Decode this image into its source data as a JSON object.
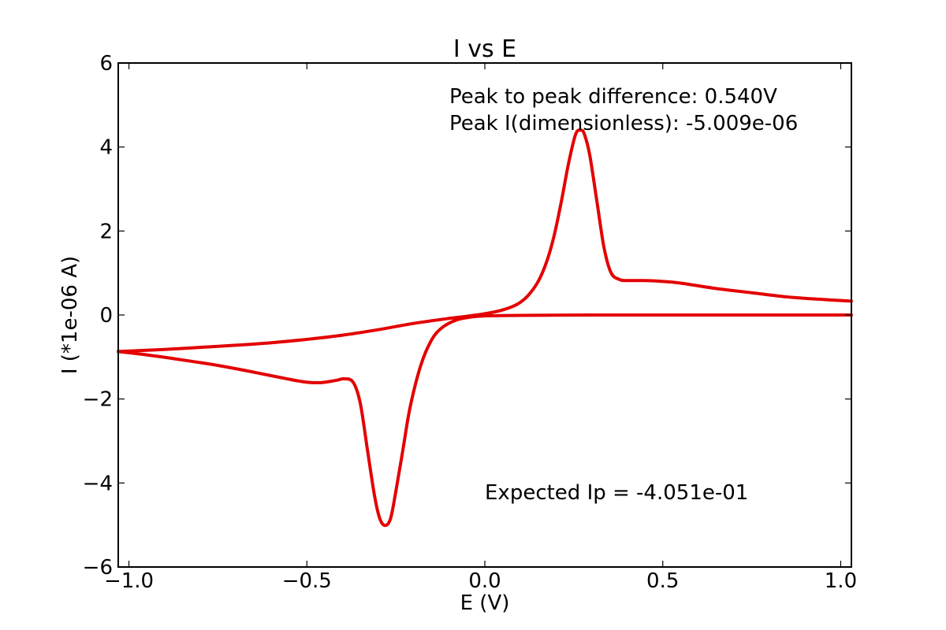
{
  "chart_data": {
    "type": "line",
    "title": "I vs E",
    "xlabel": "E (V)",
    "ylabel": "I (*1e-06 A)",
    "xlim": [
      -1.03,
      1.03
    ],
    "ylim": [
      -6,
      6
    ],
    "xticks": [
      -1.0,
      -0.5,
      0.0,
      0.5,
      1.0
    ],
    "xtick_labels": [
      "−1.0",
      "−0.5",
      "0.0",
      "0.5",
      "1.0"
    ],
    "yticks": [
      6,
      4,
      2,
      0,
      -2,
      -4,
      -6
    ],
    "ytick_labels": [
      "6",
      "4",
      "2",
      "0",
      "−2",
      "−4",
      "−6"
    ],
    "grid": false,
    "series_color": "#e30000",
    "annotations": {
      "peak_diff": "Peak to peak difference: 0.540V",
      "peak_current": "Peak I(dimensionless): -5.009e-06",
      "expected_ip": "Expected Ip = -4.051e-01"
    },
    "series": [
      {
        "points": [
          [
            -1.03,
            -0.87
          ],
          [
            -0.95,
            -0.95
          ],
          [
            -0.85,
            -1.07
          ],
          [
            -0.75,
            -1.2
          ],
          [
            -0.65,
            -1.36
          ],
          [
            -0.55,
            -1.53
          ],
          [
            -0.5,
            -1.6
          ],
          [
            -0.46,
            -1.61
          ],
          [
            -0.42,
            -1.56
          ],
          [
            -0.395,
            -1.52
          ],
          [
            -0.37,
            -1.6
          ],
          [
            -0.35,
            -2.1
          ],
          [
            -0.33,
            -3.2
          ],
          [
            -0.31,
            -4.3
          ],
          [
            -0.295,
            -4.85
          ],
          [
            -0.28,
            -5.01
          ],
          [
            -0.265,
            -4.85
          ],
          [
            -0.25,
            -4.2
          ],
          [
            -0.23,
            -3.2
          ],
          [
            -0.21,
            -2.2
          ],
          [
            -0.18,
            -1.2
          ],
          [
            -0.15,
            -0.6
          ],
          [
            -0.12,
            -0.3
          ],
          [
            -0.08,
            -0.12
          ],
          [
            -0.04,
            -0.05
          ],
          [
            0.0,
            -0.02
          ],
          [
            0.1,
            -0.01
          ],
          [
            0.3,
            0.0
          ],
          [
            0.5,
            0.0
          ],
          [
            0.7,
            0.0
          ],
          [
            0.9,
            0.0
          ],
          [
            1.03,
            0.0
          ]
        ]
      },
      {
        "points": [
          [
            1.03,
            0.33
          ],
          [
            0.95,
            0.37
          ],
          [
            0.85,
            0.43
          ],
          [
            0.75,
            0.53
          ],
          [
            0.65,
            0.63
          ],
          [
            0.55,
            0.76
          ],
          [
            0.5,
            0.8
          ],
          [
            0.45,
            0.82
          ],
          [
            0.4,
            0.82
          ],
          [
            0.38,
            0.84
          ],
          [
            0.355,
            1.0
          ],
          [
            0.335,
            1.6
          ],
          [
            0.315,
            2.7
          ],
          [
            0.295,
            3.8
          ],
          [
            0.28,
            4.3
          ],
          [
            0.27,
            4.4
          ],
          [
            0.255,
            4.3
          ],
          [
            0.235,
            3.6
          ],
          [
            0.215,
            2.7
          ],
          [
            0.195,
            1.9
          ],
          [
            0.175,
            1.3
          ],
          [
            0.15,
            0.8
          ],
          [
            0.12,
            0.45
          ],
          [
            0.09,
            0.25
          ],
          [
            0.05,
            0.12
          ],
          [
            0.0,
            0.03
          ],
          [
            -0.05,
            -0.03
          ],
          [
            -0.1,
            -0.08
          ],
          [
            -0.2,
            -0.2
          ],
          [
            -0.3,
            -0.35
          ],
          [
            -0.4,
            -0.48
          ],
          [
            -0.5,
            -0.58
          ],
          [
            -0.6,
            -0.66
          ],
          [
            -0.7,
            -0.72
          ],
          [
            -0.8,
            -0.77
          ],
          [
            -0.9,
            -0.82
          ],
          [
            -1.03,
            -0.87
          ]
        ]
      }
    ]
  }
}
